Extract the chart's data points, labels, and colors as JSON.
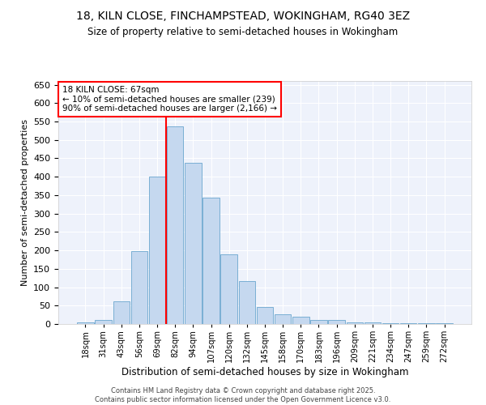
{
  "title1": "18, KILN CLOSE, FINCHAMPSTEAD, WOKINGHAM, RG40 3EZ",
  "title2": "Size of property relative to semi-detached houses in Wokingham",
  "xlabel": "Distribution of semi-detached houses by size in Wokingham",
  "ylabel": "Number of semi-detached properties",
  "categories": [
    "18sqm",
    "31sqm",
    "43sqm",
    "56sqm",
    "69sqm",
    "82sqm",
    "94sqm",
    "107sqm",
    "120sqm",
    "132sqm",
    "145sqm",
    "158sqm",
    "170sqm",
    "183sqm",
    "196sqm",
    "209sqm",
    "221sqm",
    "234sqm",
    "247sqm",
    "259sqm",
    "272sqm"
  ],
  "bar_values": [
    5,
    12,
    62,
    198,
    400,
    536,
    437,
    344,
    190,
    116,
    46,
    26,
    20,
    12,
    10,
    5,
    5,
    3,
    2,
    2,
    2
  ],
  "bar_color": "#c5d8ef",
  "bar_edge_color": "#7aafd4",
  "property_line_x": 4.5,
  "annotation_text": "18 KILN CLOSE: 67sqm\n← 10% of semi-detached houses are smaller (239)\n90% of semi-detached houses are larger (2,166) →",
  "ylim": [
    0,
    660
  ],
  "yticks": [
    0,
    50,
    100,
    150,
    200,
    250,
    300,
    350,
    400,
    450,
    500,
    550,
    600,
    650
  ],
  "footer1": "Contains HM Land Registry data © Crown copyright and database right 2025.",
  "footer2": "Contains public sector information licensed under the Open Government Licence v3.0.",
  "bg_color": "#eef2fb"
}
